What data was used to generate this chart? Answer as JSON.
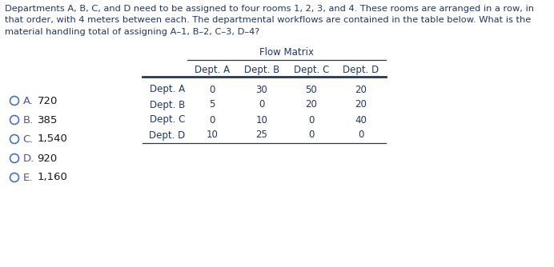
{
  "title_lines": [
    "Departments A, B, C, and D need to be assigned to four rooms 1, 2, 3, and 4. These rooms are arranged in a row, in",
    "that order, with 4 meters between each. The departmental workflows are contained in the table below. What is the",
    "material handling total of assigning A–1, B–2, C–3, D–4?"
  ],
  "title_color": "#1f3864",
  "table_title": "Flow Matrix",
  "col_headers": [
    "Dept. A",
    "Dept. B",
    "Dept. C",
    "Dept. D"
  ],
  "row_headers": [
    "Dept. A",
    "Dept. B",
    "Dept. C",
    "Dept. D"
  ],
  "table_data": [
    [
      0,
      30,
      50,
      20
    ],
    [
      5,
      0,
      20,
      20
    ],
    [
      0,
      10,
      0,
      40
    ],
    [
      10,
      25,
      0,
      0
    ]
  ],
  "choices": [
    {
      "label": "A.",
      "text": "720"
    },
    {
      "label": "B.",
      "text": "385"
    },
    {
      "label": "C.",
      "text": "1,540"
    },
    {
      "label": "D.",
      "text": "920"
    },
    {
      "label": "E.",
      "text": "1,160"
    }
  ],
  "text_color": "#1f3864",
  "choice_label_color": "#5b4ea8",
  "choice_text_color": "#1a1a1a",
  "bg_color": "#ffffff",
  "table_header_color": "#1f3864",
  "table_data_color": "#1f3864",
  "choice_circle_color": "#4472c4",
  "line_color": "#1f3864",
  "font_size_title": 8.2,
  "font_size_table": 8.5,
  "font_size_choices": 9.5
}
